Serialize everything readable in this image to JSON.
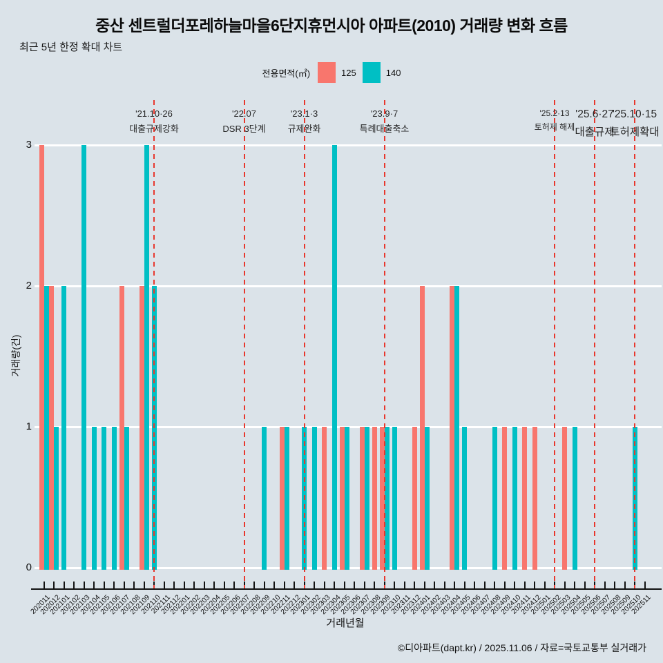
{
  "title": "중산 센트럴더포레하늘마을6단지휴먼시아 아파트(2010) 거래량 변화 흐름",
  "subtitle": "최근 5년 한정 확대 차트",
  "legend": {
    "label": "전용면적(㎡)",
    "items": [
      {
        "label": "125",
        "color": "#F8766D"
      },
      {
        "label": "140",
        "color": "#00BFC4"
      }
    ]
  },
  "y_axis": {
    "title": "거래량(건)",
    "ticks": [
      "0",
      "1",
      "2",
      "3"
    ]
  },
  "x_axis": {
    "title": "거래년월"
  },
  "footer": "©디아파트(dapt.kr) / 2025.11.06 / 자료=국토교통부 실거래가",
  "chart_data": {
    "type": "bar",
    "title": "중산 센트럴더포레하늘마을6단지휴먼시아 아파트(2010) 거래량 변화 흐름",
    "subtitle": "최근 5년 한정 확대 차트",
    "xlabel": "거래년월",
    "ylabel": "거래량(건)",
    "ylim": [
      0,
      3
    ],
    "grid": true,
    "legend_position": "top-center",
    "categories": [
      "202011",
      "202012",
      "202101",
      "202102",
      "202103",
      "202104",
      "202105",
      "202106",
      "202107",
      "202108",
      "202109",
      "202110",
      "202111",
      "202112",
      "202201",
      "202202",
      "202203",
      "202204",
      "202205",
      "202206",
      "202207",
      "202208",
      "202209",
      "202210",
      "202211",
      "202212",
      "202301",
      "202302",
      "202303",
      "202304",
      "202305",
      "202306",
      "202307",
      "202308",
      "202309",
      "202310",
      "202311",
      "202312",
      "202401",
      "202402",
      "202403",
      "202404",
      "202405",
      "202406",
      "202407",
      "202408",
      "202409",
      "202410",
      "202411",
      "202412",
      "202501",
      "202502",
      "202503",
      "202504",
      "202505",
      "202506",
      "202507",
      "202508",
      "202509",
      "202510",
      "202511"
    ],
    "series": [
      {
        "name": "125",
        "color": "#F8766D",
        "values": [
          3,
          2,
          0,
          0,
          0,
          0,
          0,
          0,
          2,
          0,
          2,
          0,
          0,
          0,
          0,
          0,
          0,
          0,
          0,
          0,
          0,
          0,
          0,
          0,
          1,
          0,
          0,
          0,
          1,
          0,
          1,
          0,
          1,
          1,
          1,
          0,
          0,
          1,
          2,
          0,
          0,
          2,
          0,
          0,
          0,
          0,
          1,
          0,
          1,
          1,
          0,
          0,
          1,
          0,
          0,
          0,
          0,
          0,
          0,
          0,
          0
        ]
      },
      {
        "name": "140",
        "color": "#00BFC4",
        "values": [
          2,
          1,
          2,
          0,
          3,
          1,
          1,
          1,
          1,
          0,
          3,
          2,
          0,
          0,
          0,
          0,
          0,
          0,
          0,
          0,
          0,
          0,
          1,
          0,
          1,
          0,
          1,
          1,
          0,
          3,
          1,
          0,
          1,
          0,
          1,
          1,
          0,
          0,
          1,
          0,
          0,
          2,
          1,
          0,
          0,
          1,
          0,
          1,
          0,
          0,
          0,
          0,
          0,
          1,
          0,
          0,
          0,
          0,
          0,
          1,
          0
        ]
      }
    ],
    "annotations": [
      {
        "month": "202110",
        "date": "'21.10·26",
        "label": "대출규제강화",
        "size": "md",
        "line_color": "#E8372D"
      },
      {
        "month": "202207",
        "date": "'22.07",
        "label": "DSR 3단계",
        "size": "md",
        "line_color": "#E8372D"
      },
      {
        "month": "202301",
        "date": "'23.1·3",
        "label": "규제완화",
        "size": "md",
        "line_color": "#E8372D"
      },
      {
        "month": "202309",
        "date": "'23.9·7",
        "label": "특례대출축소",
        "size": "md",
        "line_color": "#E8372D"
      },
      {
        "month": "202502",
        "date": "'25.2·13",
        "label": "토허제 해제",
        "size": "sm",
        "line_color": "#E8372D"
      },
      {
        "month": "202506",
        "date": "'25.6·27",
        "label": "대출규제",
        "size": "lg",
        "line_color": "#E8372D"
      },
      {
        "month": "202510",
        "date": "'25.10·15",
        "label": "토허제확대",
        "size": "lg",
        "line_color": "#E8372D"
      }
    ]
  }
}
